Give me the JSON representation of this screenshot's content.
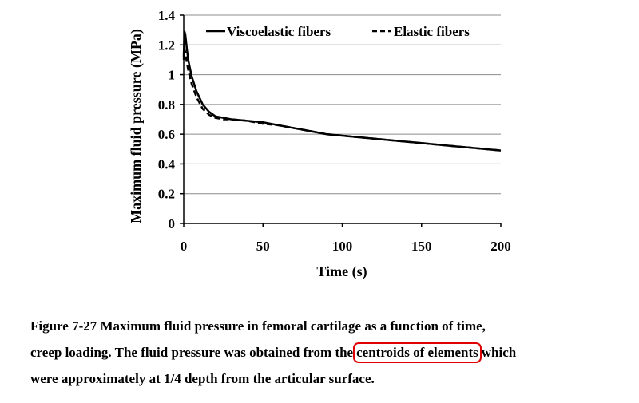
{
  "chart_data": {
    "type": "line",
    "xlabel": "Time (s)",
    "ylabel": "Maximum fluid pressure (MPa)",
    "xlim": [
      0,
      200
    ],
    "ylim": [
      0,
      1.4
    ],
    "x_ticks": [
      "0",
      "50",
      "100",
      "150",
      "200"
    ],
    "y_ticks": [
      "0",
      "0.2",
      "0.4",
      "0.6",
      "0.8",
      "1",
      "1.2",
      "1.4"
    ],
    "grid": "horizontal",
    "legend_position": "top",
    "series": [
      {
        "name": "Viscoelastic fibers",
        "style": "solid",
        "color": "#000000",
        "x": [
          0,
          0.5,
          1,
          2,
          3,
          5,
          8,
          12,
          16,
          20,
          25,
          30,
          40,
          50,
          60,
          70,
          80,
          90,
          100,
          110,
          120,
          130,
          140,
          150,
          160,
          170,
          180,
          190,
          200
        ],
        "y": [
          1.12,
          1.29,
          1.27,
          1.17,
          1.09,
          0.99,
          0.89,
          0.8,
          0.75,
          0.72,
          0.71,
          0.7,
          0.69,
          0.68,
          0.66,
          0.64,
          0.62,
          0.6,
          0.59,
          0.58,
          0.57,
          0.56,
          0.55,
          0.54,
          0.53,
          0.52,
          0.51,
          0.5,
          0.49
        ]
      },
      {
        "name": "Elastic fibers",
        "style": "dashed",
        "color": "#000000",
        "x": [
          0,
          0.5,
          1,
          2,
          3,
          5,
          8,
          12,
          16,
          20,
          25,
          30,
          40,
          50,
          60,
          70,
          80,
          90,
          100,
          110,
          120,
          130,
          140,
          150,
          160,
          170,
          180,
          190,
          200
        ],
        "y": [
          1.1,
          1.17,
          1.15,
          1.08,
          1.02,
          0.94,
          0.85,
          0.77,
          0.73,
          0.71,
          0.7,
          0.7,
          0.69,
          0.67,
          0.66,
          0.64,
          0.62,
          0.6,
          0.59,
          0.58,
          0.57,
          0.56,
          0.55,
          0.54,
          0.53,
          0.52,
          0.51,
          0.5,
          0.49
        ]
      }
    ]
  },
  "caption": {
    "line1": "Figure 7-27 Maximum fluid pressure in femoral cartilage as a function of time,",
    "line2_before": "creep loading. The fluid pressure was obtained from the",
    "line2_circled": "centroids of elements",
    "line2_after": "which",
    "line3": "were approximately at 1/4 depth from the articular surface.",
    "highlight_color": "#e00000"
  }
}
